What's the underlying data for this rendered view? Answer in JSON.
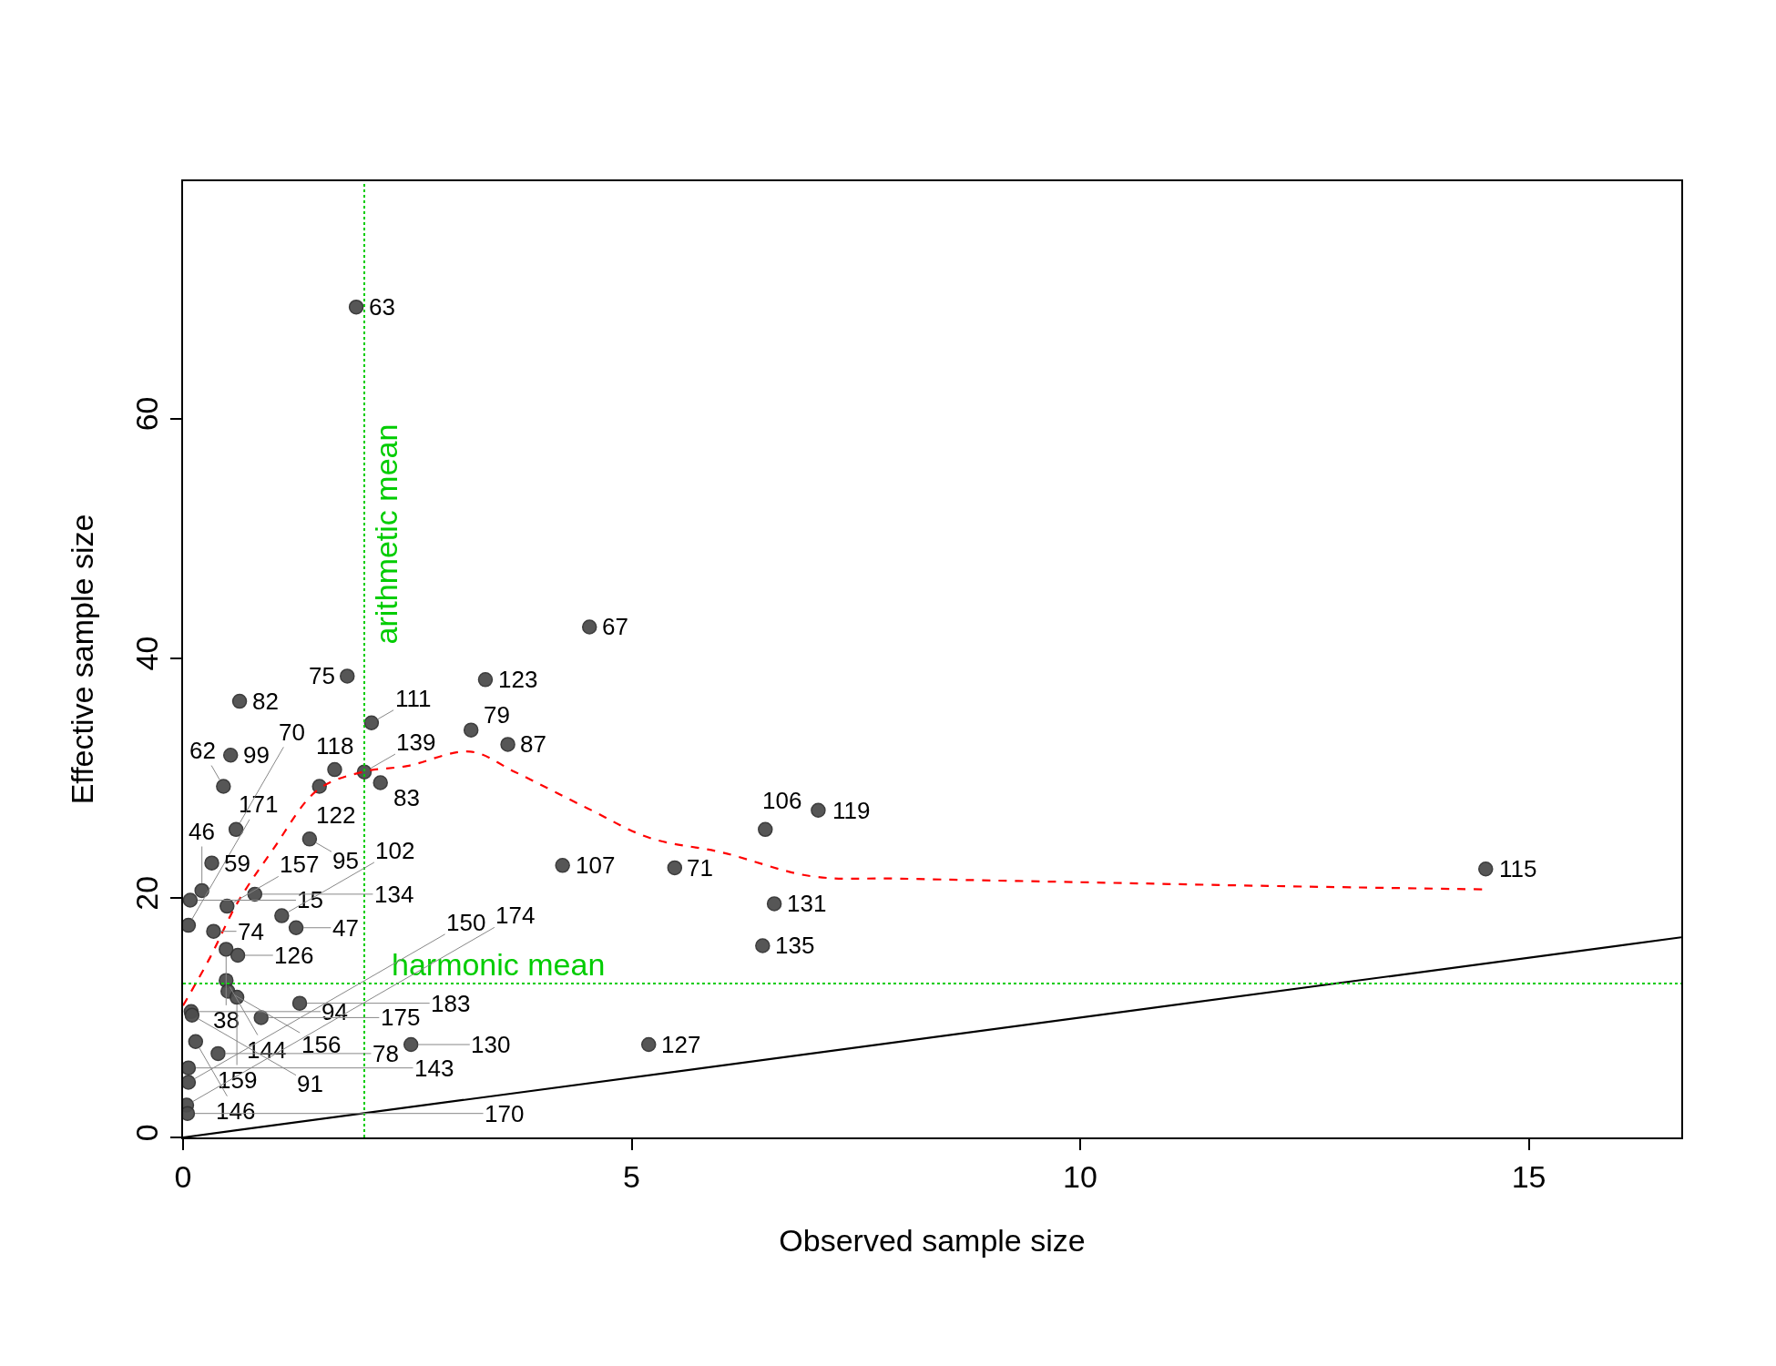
{
  "chart_data": {
    "type": "scatter",
    "xlabel": "Observed sample size",
    "ylabel": "Effective sample size",
    "xlim": [
      0,
      16.7
    ],
    "ylim": [
      0,
      79.8
    ],
    "xticks": [
      0,
      5,
      10,
      15
    ],
    "yticks": [
      0,
      20,
      40,
      60
    ],
    "marker": "circle",
    "series": [
      {
        "color": "#4d4d4d",
        "x": [
          1.93,
          4.53,
          1.83,
          3.37,
          0.63,
          2.1,
          3.21,
          3.62,
          0.53,
          0.45,
          1.69,
          2.02,
          2.2,
          1.52,
          0.59,
          1.41,
          0.32,
          6.49,
          7.08,
          4.23,
          5.48,
          14.52,
          6.59,
          6.46,
          2.54,
          5.19,
          0.21,
          0.08,
          0.8,
          0.49,
          1.1,
          1.26,
          0.06,
          0.34,
          0.48,
          0.61,
          0.48,
          0.5,
          0.6,
          1.3,
          0.87,
          0.09,
          0.1,
          0.14,
          0.39,
          0.06,
          0.06,
          0.04,
          0.05
        ],
        "values": [
          69.3,
          42.6,
          38.5,
          38.2,
          36.4,
          34.6,
          34.0,
          32.8,
          31.9,
          29.3,
          30.7,
          30.5,
          29.6,
          29.3,
          25.7,
          24.9,
          22.9,
          25.7,
          27.3,
          22.7,
          22.5,
          22.4,
          19.5,
          16.0,
          7.75,
          7.75,
          20.6,
          19.8,
          20.3,
          19.3,
          18.5,
          17.5,
          17.7,
          17.2,
          15.7,
          15.2,
          13.1,
          12.2,
          11.7,
          11.2,
          10.0,
          10.5,
          10.2,
          8.0,
          7.0,
          5.8,
          4.6,
          2.7,
          2.0
        ]
      },
      {
        "type": "line",
        "color": "#ff0000",
        "line_style": "dashed",
        "marker": "none",
        "x": [
          0,
          0.3,
          0.6,
          1,
          1.5,
          2,
          2.5,
          3.2,
          3.7,
          4.5,
          5.2,
          6,
          7,
          8,
          10,
          12,
          14.5
        ],
        "values": [
          11,
          15,
          19.5,
          24,
          29,
          30.5,
          31,
          32.2,
          30.5,
          27.5,
          25,
          23.8,
          21.8,
          21.6,
          21.3,
          21,
          20.7
        ]
      },
      {
        "type": "line",
        "color": "#000000",
        "line_style": "solid",
        "marker": "none",
        "x": [
          0,
          16.7
        ],
        "values": [
          0,
          16.7
        ]
      }
    ],
    "ref_lines": [
      {
        "axis": "y",
        "value": 12.85,
        "label": "harmonic mean",
        "color": "#00cc00",
        "line_style": "dotted"
      },
      {
        "axis": "x",
        "value": 2.02,
        "label": "arithmetic mean",
        "color": "#00cc00",
        "line_style": "dotted"
      }
    ],
    "annotations": [
      {
        "text": "63",
        "x": 1.93,
        "y": 69.3
      },
      {
        "text": "67",
        "x": 4.53,
        "y": 42.6
      },
      {
        "text": "75",
        "x": 1.83,
        "y": 38.5
      },
      {
        "text": "123",
        "x": 3.37,
        "y": 38.2
      },
      {
        "text": "82",
        "x": 0.63,
        "y": 36.4
      },
      {
        "text": "111",
        "x": 2.1,
        "y": 34.6
      },
      {
        "text": "79",
        "x": 3.21,
        "y": 34.0
      },
      {
        "text": "87",
        "x": 3.62,
        "y": 32.8
      },
      {
        "text": "99",
        "x": 0.53,
        "y": 31.9
      },
      {
        "text": "62",
        "x": 0.45,
        "y": 29.3
      },
      {
        "text": "118",
        "x": 1.69,
        "y": 30.7
      },
      {
        "text": "139",
        "x": 2.02,
        "y": 30.5
      },
      {
        "text": "83",
        "x": 2.2,
        "y": 29.6
      },
      {
        "text": "122",
        "x": 1.52,
        "y": 29.3
      },
      {
        "text": "70",
        "x": 0.59,
        "y": 25.7
      },
      {
        "text": "95",
        "x": 1.41,
        "y": 24.9
      },
      {
        "text": "59",
        "x": 0.32,
        "y": 22.9
      },
      {
        "text": "106",
        "x": 6.49,
        "y": 25.7
      },
      {
        "text": "119",
        "x": 7.08,
        "y": 27.3
      },
      {
        "text": "107",
        "x": 4.23,
        "y": 22.7
      },
      {
        "text": "71",
        "x": 5.48,
        "y": 22.5
      },
      {
        "text": "115",
        "x": 14.52,
        "y": 22.4
      },
      {
        "text": "131",
        "x": 6.59,
        "y": 19.5
      },
      {
        "text": "135",
        "x": 6.46,
        "y": 16.0
      },
      {
        "text": "130",
        "x": 2.54,
        "y": 7.75
      },
      {
        "text": "127",
        "x": 5.19,
        "y": 7.75
      },
      {
        "text": "46",
        "x": 0.21,
        "y": 20.6
      },
      {
        "text": "15",
        "x": 0.08,
        "y": 19.8
      },
      {
        "text": "134",
        "x": 0.8,
        "y": 20.3
      },
      {
        "text": "157",
        "x": 0.49,
        "y": 19.3
      },
      {
        "text": "102",
        "x": 1.1,
        "y": 18.5
      },
      {
        "text": "47",
        "x": 1.26,
        "y": 17.5
      },
      {
        "text": "171",
        "x": 0.06,
        "y": 17.7
      },
      {
        "text": "74",
        "x": 0.34,
        "y": 17.2
      },
      {
        "text": "38",
        "x": 0.48,
        "y": 15.7
      },
      {
        "text": "126",
        "x": 0.61,
        "y": 15.2
      },
      {
        "text": "144",
        "x": 0.48,
        "y": 13.1
      },
      {
        "text": "156",
        "x": 0.5,
        "y": 12.2
      },
      {
        "text": "159",
        "x": 0.6,
        "y": 11.7
      },
      {
        "text": "183",
        "x": 1.3,
        "y": 11.2
      },
      {
        "text": "175",
        "x": 0.87,
        "y": 10.0
      },
      {
        "text": "94",
        "x": 0.09,
        "y": 10.5
      },
      {
        "text": "91",
        "x": 0.1,
        "y": 10.2
      },
      {
        "text": "146",
        "x": 0.14,
        "y": 8.0
      },
      {
        "text": "78",
        "x": 0.39,
        "y": 7.0
      },
      {
        "text": "143",
        "x": 0.06,
        "y": 5.8
      },
      {
        "text": "150",
        "x": 0.06,
        "y": 4.6
      },
      {
        "text": "174",
        "x": 0.04,
        "y": 2.7
      },
      {
        "text": "170",
        "x": 0.05,
        "y": 2.0
      }
    ]
  }
}
